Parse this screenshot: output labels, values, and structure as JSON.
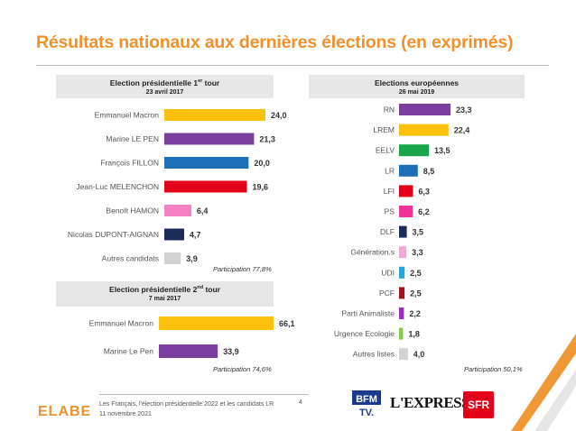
{
  "title": "Résultats nationaux aux dernières élections (en exprimés)",
  "colors": {
    "accent": "#f0922b",
    "panel": "#e6e6e6"
  },
  "chart_data": [
    {
      "type": "bar",
      "orientation": "horizontal",
      "title": "Election présidentielle 1",
      "title_sup": "er",
      "title_suffix": " tour",
      "subtitle": "23 avril 2017",
      "note": "Participation 77,8%",
      "xlim": [
        0,
        70
      ],
      "categories": [
        "Emmanuel Macron",
        "Marine LE PEN",
        "François FILLON",
        "Jean-Luc MELENCHON",
        "Benoît HAMON",
        "Nicolas DUPONT-AIGNAN",
        "Autres candidats"
      ],
      "values": [
        24.0,
        21.3,
        20.0,
        19.6,
        6.4,
        4.7,
        3.9
      ],
      "value_labels": [
        "24,0",
        "21,3",
        "20,0",
        "19,6",
        "6,4",
        "4,7",
        "3,9"
      ],
      "colors": [
        "#fcc10c",
        "#7a3f9f",
        "#1d6fb8",
        "#e4001b",
        "#f680c4",
        "#1b2b5a",
        "#d3d3d3"
      ]
    },
    {
      "type": "bar",
      "orientation": "horizontal",
      "title": "Election présidentielle 2",
      "title_sup": "nd",
      "title_suffix": " tour",
      "subtitle": "7 mai 2017",
      "note": "Participation 74,6%",
      "xlim": [
        0,
        70
      ],
      "categories": [
        "Emmanuel Macron",
        "Marine Le Pen"
      ],
      "values": [
        66.1,
        33.9
      ],
      "value_labels": [
        "66,1",
        "33,9"
      ],
      "colors": [
        "#fcc10c",
        "#7a3f9f"
      ]
    },
    {
      "type": "bar",
      "orientation": "horizontal",
      "title": "Elections européennes",
      "title_sup": "",
      "title_suffix": "",
      "subtitle": "26 mai 2019",
      "note": "Participation 50,1%",
      "xlim": [
        0,
        24
      ],
      "categories": [
        "RN",
        "LREM",
        "EELV",
        "LR",
        "LFI",
        "PS",
        "DLF",
        "Génération.s",
        "UDI",
        "PCF",
        "Parti Animaliste",
        "Urgence Ecologie",
        "Autres listes"
      ],
      "values": [
        23.3,
        22.4,
        13.5,
        8.5,
        6.3,
        6.2,
        3.5,
        3.3,
        2.5,
        2.5,
        2.2,
        1.8,
        4.0
      ],
      "value_labels": [
        "23,3",
        "22,4",
        "13,5",
        "8,5",
        "6,3",
        "6,2",
        "3,5",
        "3,3",
        "2,5",
        "2,5",
        "2,2",
        "1,8",
        "4,0"
      ],
      "colors": [
        "#7a3f9f",
        "#fcc10c",
        "#1aa54a",
        "#1d6fb8",
        "#e4001b",
        "#f0339a",
        "#1b2b5a",
        "#f6a6d6",
        "#22a6d8",
        "#a4121b",
        "#9b30c0",
        "#86c84a",
        "#d3d3d3"
      ]
    }
  ],
  "footer": {
    "logo": "ELABE",
    "line1": "Les Français, l'élection présidentielle 2022 et les candidats LR",
    "line2": "11 novembre 2021",
    "page": "4"
  },
  "partners": {
    "bfm_top": "BFM",
    "bfm_bottom": "TV.",
    "express": "L'EXPRESS",
    "sfr": "SFR"
  }
}
